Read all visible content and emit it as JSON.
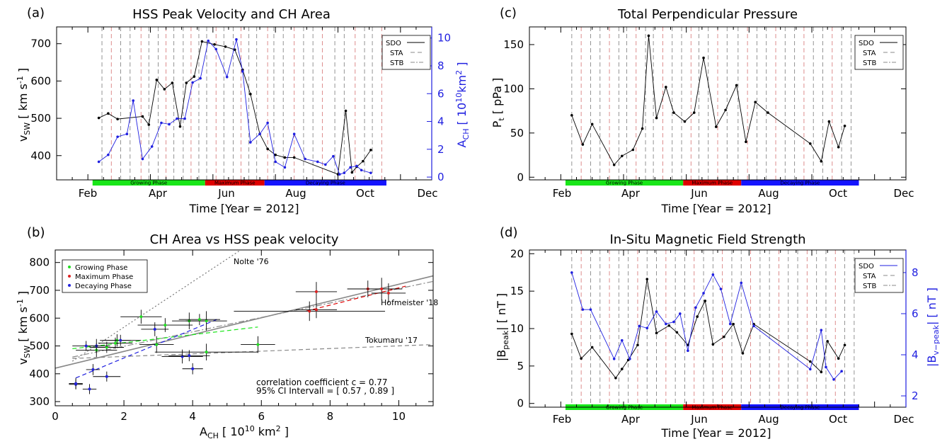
{
  "figure": {
    "colors": {
      "sdo": "#000000",
      "blue": "#1f1fe0",
      "green": "#19e619",
      "red": "#e00000",
      "blue_bar": "#1414ff",
      "dash_gray": "#888888",
      "dash_red": "#d98080",
      "growing": "#22dd22",
      "maximum": "#dd2222",
      "decaying": "#2222dd"
    },
    "months": [
      "Feb",
      "Apr",
      "Jun",
      "Aug",
      "Oct",
      "Dec"
    ],
    "phases": [
      "Growing Phase",
      "Maximum Phase",
      "Decaying Phase"
    ],
    "legend_sources": [
      "SDO",
      "STA",
      "STB"
    ]
  },
  "chart_data": [
    {
      "id": "a",
      "type": "line",
      "panel_label": "(a)",
      "title": "HSS Peak Velocity and CH Area",
      "ylabel": "v_SW [ km s^-1 ]",
      "y2label": "A_CH [ 10^10 km^2 ]",
      "xlabel": "Time [Year = 2012]",
      "xlim": [
        0,
        12
      ],
      "ylim": [
        335,
        745
      ],
      "y2lim": [
        -0.2,
        10.8
      ],
      "yticks": [
        400,
        500,
        600,
        700
      ],
      "y2ticks": [
        0,
        2,
        4,
        6,
        8,
        10
      ],
      "xtick_positions": [
        1,
        3,
        5,
        7,
        9,
        11
      ],
      "phase_bounds": [
        1.15,
        4.75,
        6.65,
        10.55
      ],
      "dashed_lines": [
        1.45,
        1.75,
        2.05,
        2.35,
        2.7,
        2.95,
        3.25,
        3.5,
        3.75,
        4.05,
        4.3,
        4.55,
        4.8,
        5.1,
        5.35,
        5.65,
        5.9,
        6.15,
        6.4,
        6.75,
        6.95,
        7.25,
        7.6,
        7.9,
        8.2,
        8.5,
        8.9,
        9.2,
        9.55,
        9.85,
        10.1,
        10.4
      ],
      "series": [
        {
          "name": "v_SW",
          "axis": "left",
          "color": "#000000",
          "x": [
            1.35,
            1.65,
            1.95,
            2.75,
            2.95,
            3.2,
            3.45,
            3.7,
            3.95,
            4.15,
            4.4,
            4.65,
            5.05,
            5.4,
            5.7,
            5.95,
            6.2,
            6.5,
            6.75,
            7.0,
            7.3,
            7.6,
            9.0,
            9.25,
            9.45,
            9.6,
            9.8,
            10.05
          ],
          "y": [
            501,
            513,
            498,
            505,
            483,
            603,
            578,
            595,
            478,
            595,
            612,
            706,
            698,
            692,
            684,
            630,
            565,
            458,
            418,
            402,
            395,
            395,
            350,
            520,
            355,
            370,
            385,
            415
          ]
        },
        {
          "name": "A_CH",
          "axis": "right",
          "color": "#1f1fe0",
          "x": [
            1.35,
            1.65,
            1.95,
            2.25,
            2.45,
            2.75,
            3.05,
            3.35,
            3.6,
            3.85,
            4.1,
            4.35,
            4.6,
            4.85,
            5.1,
            5.45,
            5.75,
            5.95,
            6.2,
            6.5,
            6.75,
            7.0,
            7.3,
            7.6,
            7.95,
            8.35,
            8.6,
            8.85,
            9.05,
            9.2,
            9.4,
            9.6,
            9.75,
            10.05
          ],
          "y": [
            1.1,
            1.6,
            2.9,
            3.1,
            5.5,
            1.3,
            2.2,
            3.9,
            3.8,
            4.2,
            4.2,
            6.8,
            7.1,
            9.8,
            9.2,
            7.2,
            9.9,
            7.6,
            2.5,
            3.1,
            3.9,
            1.1,
            0.7,
            3.1,
            1.3,
            1.1,
            0.9,
            1.5,
            0.2,
            0.3,
            0.7,
            0.8,
            0.5,
            0.3
          ]
        }
      ]
    },
    {
      "id": "b",
      "type": "scatter",
      "panel_label": "(b)",
      "title": "CH Area vs HSS peak velocity",
      "ylabel": "v_SW [ km s^-1 ]",
      "xlabel": "A_CH [ 10^10 km^2 ]",
      "xlim": [
        0,
        11
      ],
      "ylim": [
        285,
        845
      ],
      "xticks": [
        0,
        2,
        4,
        6,
        8,
        10
      ],
      "yticks": [
        300,
        400,
        500,
        600,
        700,
        800
      ],
      "legend": [
        "Growing Phase",
        "Maximum Phase",
        "Decaying Phase"
      ],
      "annotations": {
        "nolte": "Nolte '76",
        "hofmeister": "Hofmeister '18",
        "tokumaru": "Tokumaru '17",
        "corr": "correlation coefficient c = 0.77",
        "ci": "95% CI Intervall = [ 0.57 , 0.89 ]"
      },
      "points": [
        {
          "x": 1.2,
          "y": 485,
          "xerr": 0.6,
          "yerr": 25,
          "phase": "growing"
        },
        {
          "x": 1.5,
          "y": 495,
          "xerr": 0.5,
          "yerr": 20,
          "phase": "growing"
        },
        {
          "x": 1.75,
          "y": 510,
          "xerr": 0.5,
          "yerr": 20,
          "phase": "growing"
        },
        {
          "x": 1.8,
          "y": 520,
          "xerr": 0.4,
          "yerr": 22,
          "phase": "growing"
        },
        {
          "x": 2.5,
          "y": 605,
          "xerr": 0.6,
          "yerr": 25,
          "phase": "growing"
        },
        {
          "x": 2.95,
          "y": 505,
          "xerr": 0.5,
          "yerr": 30,
          "phase": "growing"
        },
        {
          "x": 3.2,
          "y": 575,
          "xerr": 0.8,
          "yerr": 25,
          "phase": "growing"
        },
        {
          "x": 3.9,
          "y": 590,
          "xerr": 0.5,
          "yerr": 30,
          "phase": "growing"
        },
        {
          "x": 4.4,
          "y": 590,
          "xerr": 0.6,
          "yerr": 35,
          "phase": "growing"
        },
        {
          "x": 4.4,
          "y": 478,
          "xerr": 1.5,
          "yerr": 30,
          "phase": "growing"
        },
        {
          "x": 5.9,
          "y": 505,
          "xerr": 0.5,
          "yerr": 30,
          "phase": "growing"
        },
        {
          "x": 4.2,
          "y": 595,
          "xerr": 0.6,
          "yerr": 20,
          "phase": "growing"
        },
        {
          "x": 7.4,
          "y": 625,
          "xerr": 2.2,
          "yerr": 35,
          "phase": "maximum"
        },
        {
          "x": 7.6,
          "y": 630,
          "xerr": 0.6,
          "yerr": 30,
          "phase": "maximum"
        },
        {
          "x": 7.6,
          "y": 695,
          "xerr": 0.6,
          "yerr": 35,
          "phase": "maximum"
        },
        {
          "x": 9.1,
          "y": 705,
          "xerr": 0.6,
          "yerr": 30,
          "phase": "maximum"
        },
        {
          "x": 9.5,
          "y": 705,
          "xerr": 0.6,
          "yerr": 40,
          "phase": "maximum"
        },
        {
          "x": 9.7,
          "y": 690,
          "xerr": 0.5,
          "yerr": 35,
          "phase": "maximum"
        },
        {
          "x": 0.6,
          "y": 362,
          "xerr": 0.2,
          "yerr": 18,
          "phase": "decaying"
        },
        {
          "x": 1.0,
          "y": 345,
          "xerr": 0.2,
          "yerr": 18,
          "phase": "decaying"
        },
        {
          "x": 1.1,
          "y": 415,
          "xerr": 0.2,
          "yerr": 20,
          "phase": "decaying"
        },
        {
          "x": 1.5,
          "y": 390,
          "xerr": 0.4,
          "yerr": 18,
          "phase": "decaying"
        },
        {
          "x": 1.2,
          "y": 500,
          "xerr": 0.4,
          "yerr": 25,
          "phase": "decaying"
        },
        {
          "x": 3.7,
          "y": 462,
          "xerr": 0.6,
          "yerr": 25,
          "phase": "decaying"
        },
        {
          "x": 4.0,
          "y": 418,
          "xerr": 0.3,
          "yerr": 20,
          "phase": "decaying"
        },
        {
          "x": 3.9,
          "y": 465,
          "xerr": 0.6,
          "yerr": 20,
          "phase": "decaying"
        },
        {
          "x": 2.9,
          "y": 560,
          "xerr": 0.4,
          "yerr": 25,
          "phase": "decaying"
        },
        {
          "x": 1.9,
          "y": 520,
          "xerr": 0.6,
          "yerr": 20,
          "phase": "decaying"
        },
        {
          "x": 0.9,
          "y": 500,
          "xerr": 0.4,
          "yerr": 18,
          "phase": "decaying"
        },
        {
          "x": 0.6,
          "y": 365,
          "xerr": 0.2,
          "yerr": 20,
          "phase": "decaying"
        }
      ],
      "lines": [
        {
          "name": "Nolte '76",
          "x": [
            0.5,
            5.4
          ],
          "y": [
            445,
            850
          ],
          "style": "dotted",
          "color": "#777777"
        },
        {
          "name": "fit",
          "x": [
            0,
            11
          ],
          "y": [
            420,
            752
          ],
          "style": "solid",
          "color": "#888888"
        },
        {
          "name": "Hofmeister '18",
          "x": [
            0.5,
            11
          ],
          "y": [
            460,
            732
          ],
          "style": "dashdot",
          "color": "#888888"
        },
        {
          "name": "Tokumaru '17",
          "x": [
            0.5,
            11
          ],
          "y": [
            455,
            505
          ],
          "style": "dashed",
          "color": "#888888"
        },
        {
          "name": "growing fit",
          "x": [
            0.5,
            5.9
          ],
          "y": [
            490,
            568
          ],
          "style": "dashed",
          "color": "#19e619"
        },
        {
          "name": "maximum fit",
          "x": [
            7.3,
            10.2
          ],
          "y": [
            625,
            715
          ],
          "style": "dashed",
          "color": "#e00000"
        },
        {
          "name": "decaying fit",
          "x": [
            0.6,
            4.7
          ],
          "y": [
            385,
            595
          ],
          "style": "dashed",
          "color": "#1f1fe0"
        }
      ]
    },
    {
      "id": "c",
      "type": "line",
      "panel_label": "(c)",
      "title": "Total Perpendicular Pressure",
      "ylabel": "P_t [ pPa ]",
      "xlabel": "Time [Year = 2012]",
      "xlim": [
        0,
        12
      ],
      "ylim": [
        -3,
        170
      ],
      "yticks": [
        0,
        50,
        100,
        150
      ],
      "xtick_positions": [
        1,
        3,
        5,
        7,
        9,
        11
      ],
      "phase_bounds": [
        1.15,
        4.9,
        6.75,
        10.5
      ],
      "dashed_lines": [
        1.35,
        1.65,
        1.95,
        2.25,
        2.55,
        2.85,
        3.1,
        3.4,
        3.7,
        3.95,
        4.25,
        4.55,
        4.85,
        5.15,
        5.4,
        5.7,
        6.0,
        6.3,
        6.65,
        6.95,
        7.25,
        7.55,
        7.85,
        8.15,
        8.45,
        8.75,
        9.05,
        9.35,
        9.65,
        9.95,
        10.25
      ],
      "series": [
        {
          "name": "P_t",
          "color": "#000000",
          "x": [
            1.35,
            1.7,
            2.0,
            2.7,
            2.95,
            3.3,
            3.6,
            3.8,
            4.05,
            4.35,
            4.6,
            4.95,
            5.25,
            5.55,
            5.95,
            6.25,
            6.6,
            6.9,
            7.2,
            7.6,
            8.95,
            9.3,
            9.55,
            9.85,
            10.05
          ],
          "y": [
            70,
            37,
            60,
            14,
            24,
            31,
            55,
            160,
            67,
            102,
            73,
            63,
            73,
            135,
            57,
            76,
            104,
            40,
            85,
            73,
            38,
            18,
            63,
            34,
            58
          ]
        }
      ]
    },
    {
      "id": "d",
      "type": "line",
      "panel_label": "(d)",
      "title": "In-Situ Magnetic Field Strength",
      "ylabel": "|B_peak| [ nT ]",
      "y2label": "|B_v-peak| [ nT ]",
      "xlabel": "Time [Year = 2012]",
      "xlim": [
        0,
        12
      ],
      "ylim": [
        -0.5,
        20.5
      ],
      "y2lim": [
        1.45,
        9.1
      ],
      "yticks": [
        0,
        5,
        10,
        15,
        20
      ],
      "y2ticks": [
        2,
        4,
        6,
        8
      ],
      "xtick_positions": [
        1,
        3,
        5,
        7,
        9,
        11
      ],
      "phase_bounds": [
        1.15,
        4.9,
        6.75,
        10.5
      ],
      "dashed_lines": [
        1.35,
        1.65,
        1.95,
        2.25,
        2.55,
        2.85,
        3.15,
        3.45,
        3.75,
        4.05,
        4.35,
        4.65,
        4.95,
        5.25,
        5.55,
        5.85,
        6.15,
        6.45,
        6.75,
        7.05,
        7.35,
        7.65,
        7.95,
        8.25,
        8.55,
        8.85,
        9.15,
        9.45,
        9.75,
        10.05,
        10.35
      ],
      "series": [
        {
          "name": "|B_peak|",
          "axis": "left",
          "color": "#000000",
          "x": [
            1.35,
            1.65,
            2.0,
            2.75,
            2.95,
            3.15,
            3.45,
            3.75,
            4.05,
            4.45,
            4.7,
            5.05,
            5.35,
            5.6,
            5.85,
            6.2,
            6.5,
            6.8,
            7.15,
            8.95,
            9.3,
            9.5,
            9.85,
            10.05
          ],
          "y": [
            9.3,
            6.0,
            7.5,
            3.4,
            4.6,
            5.8,
            7.8,
            16.6,
            9.4,
            10.4,
            9.5,
            7.8,
            11.6,
            13.7,
            7.9,
            8.9,
            10.6,
            6.7,
            10.6,
            5.6,
            4.2,
            8.3,
            6.0,
            7.8
          ]
        },
        {
          "name": "|B_v-peak|",
          "axis": "right",
          "color": "#1f1fe0",
          "x": [
            1.35,
            1.7,
            1.95,
            2.7,
            2.95,
            3.2,
            3.5,
            3.75,
            4.05,
            4.35,
            4.6,
            4.8,
            5.05,
            5.3,
            5.55,
            5.85,
            6.1,
            6.4,
            6.75,
            7.15,
            8.95,
            9.3,
            9.45,
            9.7,
            9.95
          ],
          "y": [
            8.0,
            6.2,
            6.2,
            3.8,
            4.7,
            3.8,
            5.4,
            5.3,
            6.1,
            5.5,
            5.6,
            6.0,
            4.2,
            6.3,
            7.0,
            7.9,
            7.2,
            5.5,
            7.5,
            5.4,
            3.3,
            5.2,
            3.4,
            2.8,
            3.2
          ]
        }
      ]
    }
  ]
}
